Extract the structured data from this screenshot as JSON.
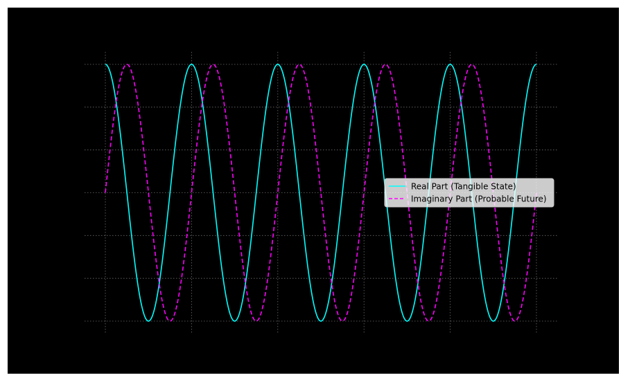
{
  "figure": {
    "background": "#ffffff",
    "axes_background": "#000000"
  },
  "chart_data": {
    "type": "line",
    "title": "",
    "xlabel": "",
    "ylabel": "",
    "xlim": [
      -0.025,
      1.025
    ],
    "ylim": [
      -1.05,
      1.05
    ],
    "x_ticks_count": 6,
    "y_ticks_count": 7,
    "tick_labels_visible": false,
    "grid": true,
    "grid_style": "dotted",
    "legend_placement": "center-right",
    "series": [
      {
        "name": "Real Part (Tangible State)",
        "color": "#00ffff",
        "linestyle": "solid",
        "function": "cos",
        "cycles": 5,
        "x": [
          0,
          0.025,
          0.05,
          0.075,
          0.1,
          0.125,
          0.15,
          0.175,
          0.2,
          0.225,
          0.25,
          0.275,
          0.3,
          0.325,
          0.35,
          0.375,
          0.4,
          0.425,
          0.45,
          0.475,
          0.5,
          0.525,
          0.55,
          0.575,
          0.6,
          0.625,
          0.65,
          0.675,
          0.7,
          0.725,
          0.75,
          0.775,
          0.8,
          0.825,
          0.85,
          0.875,
          0.9,
          0.925,
          0.95,
          0.975,
          1.0
        ],
        "y": [
          1.0,
          0.707,
          0.0,
          -0.707,
          -1.0,
          -0.707,
          0.0,
          0.707,
          1.0,
          0.707,
          0.0,
          -0.707,
          -1.0,
          -0.707,
          0.0,
          0.707,
          1.0,
          0.707,
          0.0,
          -0.707,
          -1.0,
          -0.707,
          0.0,
          0.707,
          1.0,
          0.707,
          0.0,
          -0.707,
          -1.0,
          -0.707,
          0.0,
          0.707,
          1.0,
          0.707,
          0.0,
          -0.707,
          -1.0,
          -0.707,
          0.0,
          0.707,
          1.0
        ]
      },
      {
        "name": "Imaginary Part (Probable Future)",
        "color": "#ff00ff",
        "linestyle": "dashed",
        "function": "sin",
        "cycles": 5,
        "x": [
          0,
          0.025,
          0.05,
          0.075,
          0.1,
          0.125,
          0.15,
          0.175,
          0.2,
          0.225,
          0.25,
          0.275,
          0.3,
          0.325,
          0.35,
          0.375,
          0.4,
          0.425,
          0.45,
          0.475,
          0.5,
          0.525,
          0.55,
          0.575,
          0.6,
          0.625,
          0.65,
          0.675,
          0.7,
          0.725,
          0.75,
          0.775,
          0.8,
          0.825,
          0.85,
          0.875,
          0.9,
          0.925,
          0.95,
          0.975,
          1.0
        ],
        "y": [
          0.0,
          0.707,
          1.0,
          0.707,
          0.0,
          -0.707,
          -1.0,
          -0.707,
          0.0,
          0.707,
          1.0,
          0.707,
          0.0,
          -0.707,
          -1.0,
          -0.707,
          0.0,
          0.707,
          1.0,
          0.707,
          0.0,
          -0.707,
          -1.0,
          -0.707,
          0.0,
          0.707,
          1.0,
          0.707,
          0.0,
          -0.707,
          -1.0,
          -0.707,
          0.0,
          0.707,
          1.0,
          0.707,
          0.0,
          -0.707,
          -1.0,
          -0.707,
          0.0
        ]
      }
    ]
  }
}
